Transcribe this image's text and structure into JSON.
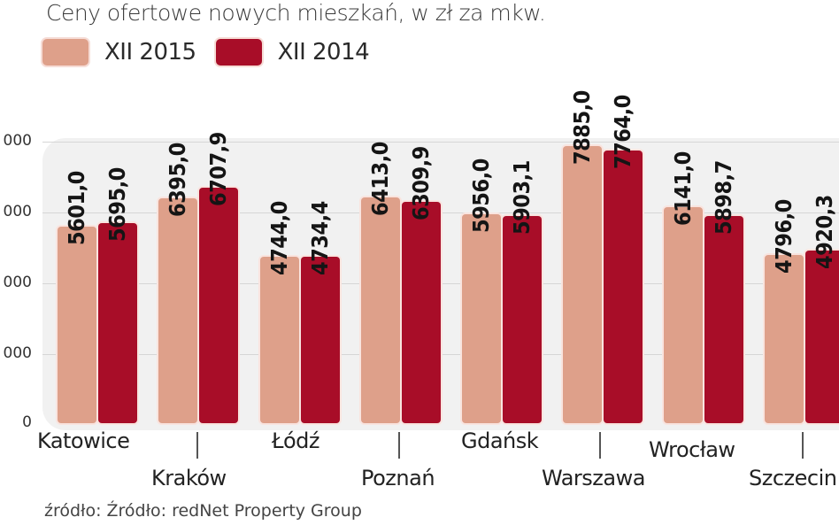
{
  "title": "Ceny ofertowe nowych  mieszkań, w zł za mkw.",
  "legend": [
    {
      "label": "XII 2015",
      "color": "#dea08a"
    },
    {
      "label": "XII 2014",
      "color": "#a80d28"
    }
  ],
  "yaxis": {
    "ticks": [
      {
        "label": "000",
        "y": 160
      },
      {
        "label": "000",
        "y": 240
      },
      {
        "label": "000",
        "y": 320
      },
      {
        "label": "000",
        "y": 400
      },
      {
        "label": "0",
        "y": 478
      }
    ]
  },
  "cities": [
    {
      "name": "Katowice",
      "v2015": "5601,0",
      "v2014": "5695,0"
    },
    {
      "name": "Kraków",
      "v2015": "6395,0",
      "v2014": "6707,9"
    },
    {
      "name": "Łódź",
      "v2015": "4744,0",
      "v2014": "4734,4"
    },
    {
      "name": "Poznań",
      "v2015": "6413,0",
      "v2014": "6309,9"
    },
    {
      "name": "Gdańsk",
      "v2015": "5956,0",
      "v2014": "5903,1"
    },
    {
      "name": "Warszawa",
      "v2015": "7885,0",
      "v2014": "7764,0"
    },
    {
      "name": "Wrocław",
      "v2015": "6141,0",
      "v2014": "5898,7"
    },
    {
      "name": "Szczecin",
      "v2015": "4796,0",
      "v2014": "4920,3"
    }
  ],
  "source": "źródło: Źródło: redNet Property Group",
  "chart_data": {
    "type": "bar",
    "title": "Ceny ofertowe nowych mieszkań, w zł za mkw.",
    "categories": [
      "Katowice",
      "Kraków",
      "Łódź",
      "Poznań",
      "Gdańsk",
      "Warszawa",
      "Wrocław",
      "Szczecin"
    ],
    "series": [
      {
        "name": "XII 2015",
        "color": "#dea08a",
        "values": [
          5601.0,
          6395.0,
          4744.0,
          6413.0,
          5956.0,
          7885.0,
          6141.0,
          4796.0
        ]
      },
      {
        "name": "XII 2014",
        "color": "#a80d28",
        "values": [
          5695.0,
          6707.9,
          4734.4,
          6309.9,
          5903.1,
          7764.0,
          5898.7,
          4920.3
        ]
      }
    ],
    "xlabel": "",
    "ylabel": "zł za mkw.",
    "yticks_visible": [
      "000",
      "000",
      "000",
      "000",
      "0"
    ],
    "ylim": [
      0,
      8000
    ],
    "grid": true,
    "legend_position": "top-left",
    "source": "źródło: Źródło: redNet Property Group"
  }
}
